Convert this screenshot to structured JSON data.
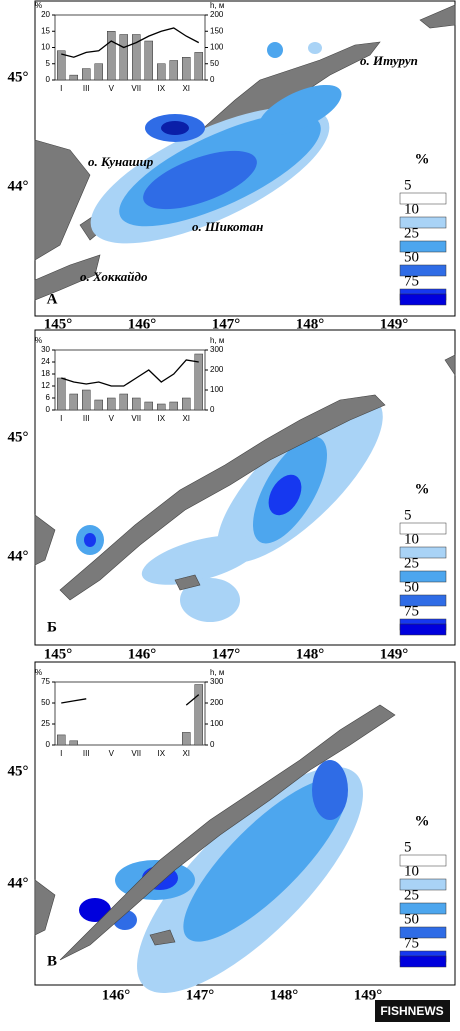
{
  "chart_data": [
    {
      "type": "bar",
      "ylabel": "%",
      "y2label": "h, м",
      "categories": [
        "I",
        null,
        "III",
        null,
        "V",
        null,
        "VII",
        null,
        "IX",
        null,
        "XI",
        null
      ],
      "ylim": [
        0,
        20
      ],
      "yticks": [
        0,
        5,
        10,
        15,
        20
      ],
      "y2lim": [
        0,
        200
      ],
      "y2ticks": [
        0,
        50,
        100,
        150,
        200
      ],
      "series": [
        {
          "color": "#9a9a9a",
          "values": [
            9,
            1.5,
            3.5,
            5,
            15,
            14,
            14,
            12,
            5,
            6,
            7,
            8.5
          ]
        },
        {
          "type": "line",
          "axis": "y2",
          "color": "#000000",
          "values": [
            80,
            70,
            85,
            90,
            120,
            100,
            115,
            135,
            150,
            160,
            135,
            115
          ]
        }
      ]
    },
    {
      "type": "bar",
      "ylabel": "%",
      "y2label": "h, м",
      "categories": [
        "I",
        null,
        "III",
        null,
        "V",
        null,
        "VII",
        null,
        "IX",
        null,
        "XI",
        null
      ],
      "ylim": [
        0,
        30
      ],
      "yticks": [
        0,
        6,
        12,
        18,
        24,
        30
      ],
      "y2lim": [
        0,
        300
      ],
      "y2ticks": [
        0,
        100,
        200,
        300
      ],
      "series": [
        {
          "color": "#9a9a9a",
          "values": [
            16,
            8,
            10,
            5,
            6,
            8,
            6,
            4,
            3,
            4,
            6,
            28
          ]
        },
        {
          "type": "line",
          "axis": "y2",
          "color": "#000000",
          "values": [
            160,
            140,
            130,
            140,
            120,
            120,
            160,
            200,
            140,
            180,
            250,
            240
          ]
        }
      ]
    },
    {
      "type": "bar",
      "ylabel": "%",
      "y2label": "h, м",
      "categories": [
        "I",
        null,
        "III",
        null,
        "V",
        null,
        "VII",
        null,
        "IX",
        null,
        "XI",
        null
      ],
      "ylim": [
        0,
        75
      ],
      "yticks": [
        0,
        25,
        50,
        75
      ],
      "y2lim": [
        0,
        300
      ],
      "y2ticks": [
        0,
        100,
        200,
        300
      ],
      "series": [
        {
          "color": "#9a9a9a",
          "values": [
            12,
            5,
            0,
            0,
            0,
            0,
            0,
            0,
            0,
            0,
            15,
            72
          ]
        },
        {
          "type": "line",
          "axis": "y2",
          "color": "#000000",
          "values": [
            200,
            210,
            220,
            null,
            null,
            null,
            null,
            null,
            null,
            null,
            190,
            240
          ]
        }
      ]
    }
  ],
  "maps": [
    {
      "label": "А",
      "lat_labels": [
        "45°",
        "44°"
      ],
      "lon_labels": [
        "145°",
        "146°",
        "147°",
        "148°",
        "149°"
      ],
      "place_names": [
        "о. Итуруп",
        "о. Кунашир",
        "о. Шикотан",
        "о. Хоккайдо"
      ],
      "legend": {
        "title": "%",
        "labels": [
          "5",
          "10",
          "25",
          "50",
          "75"
        ],
        "colors": [
          "#ffffff",
          "#a9d3f6",
          "#4da6ee",
          "#2f6ce6",
          "#1638f0",
          "#0000dd"
        ]
      }
    },
    {
      "label": "Б",
      "lat_labels": [
        "45°",
        "44°"
      ],
      "lon_labels": [
        "145°",
        "146°",
        "147°",
        "148°",
        "149°"
      ],
      "legend": {
        "title": "%",
        "labels": [
          "5",
          "10",
          "25",
          "50",
          "75"
        ],
        "colors": [
          "#ffffff",
          "#a9d3f6",
          "#4da6ee",
          "#2f6ce6",
          "#1638f0",
          "#0000dd"
        ]
      }
    },
    {
      "label": "В",
      "lat_labels": [
        "45°",
        "44°"
      ],
      "lon_labels": [
        "146°",
        "147°",
        "148°",
        "149°"
      ],
      "legend": {
        "title": "%",
        "labels": [
          "5",
          "10",
          "25",
          "50",
          "75"
        ],
        "colors": [
          "#ffffff",
          "#a9d3f6",
          "#4da6ee",
          "#2f6ce6",
          "#1638f0",
          "#0000dd"
        ]
      }
    }
  ],
  "brand": "FISHNEWS"
}
